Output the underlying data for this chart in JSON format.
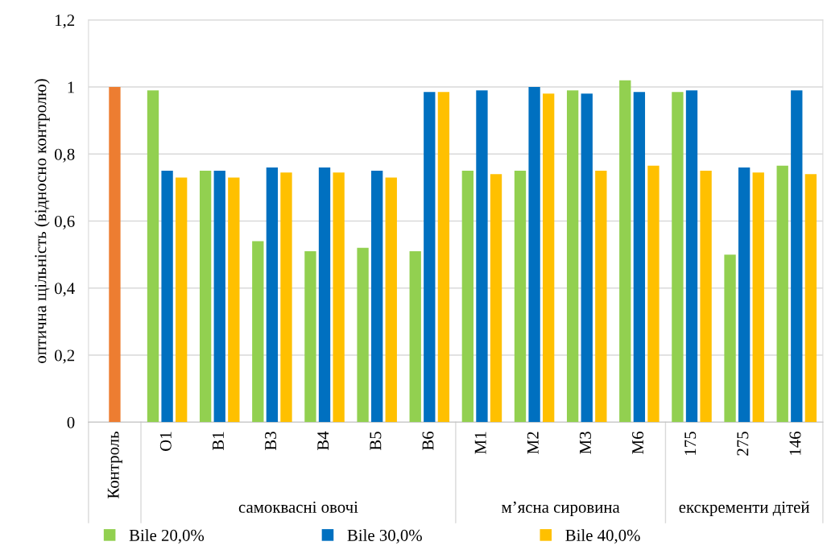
{
  "chart_data": {
    "type": "bar",
    "ylabel": "оптична щільність (відносно контролю)",
    "categories": [
      "Контроль",
      "O1",
      "B1",
      "B3",
      "B4",
      "B5",
      "B6",
      "M1",
      "M2",
      "M3",
      "M6",
      "175",
      "275",
      "146"
    ],
    "series": [
      {
        "color": "#ed7d31",
        "values": [
          1.0,
          null,
          null,
          null,
          null,
          null,
          null,
          null,
          null,
          null,
          null,
          null,
          null,
          null
        ]
      },
      {
        "name": "Bile 20,0%",
        "color": "#92d050",
        "values": [
          null,
          0.99,
          0.75,
          0.54,
          0.51,
          0.52,
          0.51,
          0.75,
          0.75,
          0.99,
          1.02,
          0.985,
          0.5,
          0.765
        ]
      },
      {
        "name": "Bile 30,0%",
        "color": "#0070c0",
        "values": [
          null,
          0.75,
          0.75,
          0.76,
          0.76,
          0.75,
          0.985,
          0.99,
          1.0,
          0.98,
          0.985,
          0.99,
          0.76,
          0.99
        ]
      },
      {
        "name": "Bile 40,0%",
        "color": "#ffc000",
        "values": [
          null,
          0.73,
          0.73,
          0.745,
          0.745,
          0.73,
          0.985,
          0.74,
          0.98,
          0.75,
          0.765,
          0.75,
          0.745,
          0.74
        ]
      }
    ],
    "annotations": [
      "самоквасні овочі",
      "м’ясна сировина",
      "екскременти дітей"
    ],
    "ylim": [
      0,
      1.2
    ],
    "yticks": [
      0,
      {
        "value": 0.2,
        "label": "0,2"
      },
      {
        "value": 0.4,
        "label": "0,4"
      },
      {
        "value": 0.6,
        "label": "0,6"
      },
      {
        "value": 0.8,
        "label": "0,8"
      },
      1,
      {
        "value": 1.2,
        "label": "1,2"
      }
    ],
    "grid": "y",
    "legend": "bottom"
  }
}
